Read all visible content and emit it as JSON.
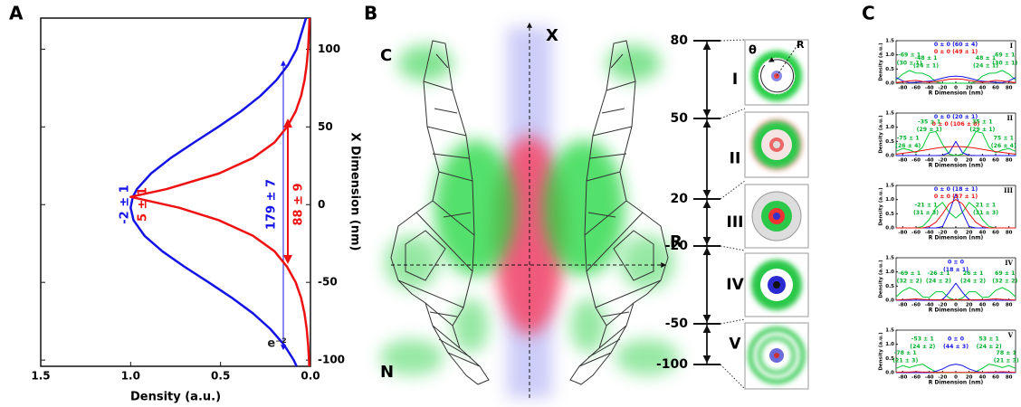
{
  "panel_labels": [
    "A",
    "B",
    "C"
  ],
  "panel_b": {
    "labels": {
      "top": "C",
      "bottom": "N",
      "x_axis": "X",
      "r_axis": "R",
      "theta": "θ",
      "radius": "R"
    },
    "scale_ticks": [
      80,
      50,
      20,
      -20,
      -50,
      -100
    ],
    "sections": [
      "I",
      "II",
      "III",
      "IV",
      "V"
    ]
  },
  "chart_data": [
    {
      "type": "line",
      "orientation": "vertical",
      "x_label": "Density (a.u.)",
      "y_label": "X Dimension (nm)",
      "x": [
        -104,
        -100,
        -90,
        -80,
        -70,
        -60,
        -50,
        -40,
        -30,
        -20,
        -10,
        -2,
        5,
        10,
        20,
        30,
        40,
        50,
        60,
        70,
        80,
        90,
        100,
        120
      ],
      "series": [
        {
          "color": "#1414e6",
          "values": [
            0.077,
            0.093,
            0.148,
            0.223,
            0.319,
            0.436,
            0.566,
            0.7,
            0.824,
            0.923,
            0.984,
            1.0,
            0.988,
            0.965,
            0.887,
            0.777,
            0.647,
            0.513,
            0.387,
            0.278,
            0.19,
            0.124,
            0.077,
            0.025
          ]
        },
        {
          "color": "#ee1111",
          "values": [
            0.007,
            0.008,
            0.013,
            0.021,
            0.033,
            0.052,
            0.082,
            0.13,
            0.2,
            0.32,
            0.51,
            0.73,
            1.0,
            0.8,
            0.51,
            0.32,
            0.2,
            0.13,
            0.082,
            0.052,
            0.033,
            0.021,
            0.013,
            0.005
          ]
        }
      ],
      "xlim": [
        1.5,
        0
      ],
      "ylim": [
        -104,
        120
      ],
      "xticks": [
        1.5,
        {
          "value": 1,
          "label": "1.0"
        },
        0.5,
        {
          "value": 0,
          "label": "0.0"
        }
      ],
      "yticks": [
        -100,
        -50,
        0,
        50,
        100
      ],
      "annotations": [
        {
          "text": "-2 ± 1",
          "color": "#1414e6"
        },
        {
          "text": "5 ± 1",
          "color": "#ee1111"
        },
        {
          "text": "179 ± 7",
          "color": "#1414e6"
        },
        {
          "text": "88 ± 9",
          "color": "#ee1111"
        },
        {
          "text": "e⁻²",
          "color": "#222222"
        }
      ]
    },
    {
      "type": "line",
      "orientation": "horizontal",
      "label": "I",
      "x_label": "R Dimension (nm)",
      "y_label": "Density (a.u.)",
      "x": [
        -90,
        -80,
        -70,
        -60,
        -50,
        -40,
        -30,
        -20,
        -10,
        0,
        10,
        20,
        30,
        40,
        50,
        60,
        70,
        80,
        90
      ],
      "series": [
        {
          "color": "#00c832",
          "values": [
            0.12,
            0.32,
            0.45,
            0.36,
            0.35,
            0.25,
            0.05,
            0,
            0,
            0,
            0,
            0,
            0.05,
            0.25,
            0.35,
            0.36,
            0.45,
            0.32,
            0.12
          ]
        },
        {
          "color": "#1414e6",
          "values": [
            0.2,
            0.08,
            0.02,
            0.03,
            0.05,
            0.07,
            0.12,
            0.18,
            0.23,
            0.25,
            0.23,
            0.18,
            0.12,
            0.07,
            0.05,
            0.03,
            0.02,
            0.08,
            0.2
          ]
        },
        {
          "color": "#ee1111",
          "values": [
            0.02,
            0.05,
            0.08,
            0.1,
            0.06,
            0.04,
            0.06,
            0.1,
            0.14,
            0.15,
            0.14,
            0.1,
            0.06,
            0.04,
            0.06,
            0.1,
            0.08,
            0.05,
            0.02
          ]
        }
      ],
      "xlim": [
        -90,
        90
      ],
      "ylim": [
        0,
        1.5
      ],
      "xticks": [
        -80,
        -60,
        -40,
        -20,
        0,
        20,
        40,
        60,
        80
      ],
      "yticks": [
        {
          "value": 0,
          "label": "0.0"
        },
        0.5,
        {
          "value": 1,
          "label": "1.0"
        },
        1.5
      ],
      "annotations": [
        {
          "text": "0 ± 0 (60 ± 4)",
          "color": "#1414e6"
        },
        {
          "text": "0 ± 0 (49 ± 1)",
          "color": "#ee1111"
        },
        {
          "text": "-69 ± 1",
          "color": "#00b02c"
        },
        {
          "text": "(30 ± 1)",
          "color": "#00b02c"
        },
        {
          "text": "-48 ± 1",
          "color": "#00b02c"
        },
        {
          "text": "(24 ± 1)",
          "color": "#00b02c"
        },
        {
          "text": "48 ± 1",
          "color": "#00b02c"
        },
        {
          "text": "(24 ± 1)",
          "color": "#00b02c"
        },
        {
          "text": "69 ± 1",
          "color": "#00b02c"
        },
        {
          "text": "(30 ± 1)",
          "color": "#00b02c"
        }
      ]
    },
    {
      "type": "line",
      "orientation": "horizontal",
      "label": "II",
      "x_label": "R Dimension (nm)",
      "y_label": "Density (a.u.)",
      "x": [
        -90,
        -80,
        -70,
        -60,
        -50,
        -40,
        -30,
        -20,
        -10,
        0,
        10,
        20,
        30,
        40,
        50,
        60,
        70,
        80,
        90
      ],
      "series": [
        {
          "color": "#00c832",
          "values": [
            0.15,
            0.25,
            0.2,
            0.1,
            0.3,
            0.8,
            0.85,
            0.4,
            0.05,
            0,
            0.05,
            0.4,
            0.85,
            0.8,
            0.3,
            0.1,
            0.2,
            0.25,
            0.15
          ]
        },
        {
          "color": "#1414e6",
          "values": [
            0,
            0,
            0,
            0,
            0,
            0,
            0,
            0.01,
            0.1,
            0.5,
            0.1,
            0.01,
            0,
            0,
            0,
            0,
            0,
            0,
            0
          ]
        },
        {
          "color": "#ee1111",
          "values": [
            0.05,
            0.08,
            0.11,
            0.14,
            0.18,
            0.22,
            0.26,
            0.29,
            0.31,
            0.32,
            0.31,
            0.29,
            0.26,
            0.22,
            0.18,
            0.14,
            0.11,
            0.08,
            0.05
          ]
        }
      ],
      "xlim": [
        -90,
        90
      ],
      "ylim": [
        0,
        1.5
      ],
      "xticks": [
        -80,
        -60,
        -40,
        -20,
        0,
        20,
        40,
        60,
        80
      ],
      "yticks": [
        {
          "value": 0,
          "label": "0.0"
        },
        0.5,
        {
          "value": 1,
          "label": "1.0"
        },
        1.5
      ],
      "annotations": [
        {
          "text": "0 ± 0 (20 ± 1)",
          "color": "#1414e6"
        },
        {
          "text": "0 ± 0 (106 ± 8)",
          "color": "#ee1111"
        },
        {
          "text": "-35 ± 1",
          "color": "#00b02c"
        },
        {
          "text": "(29 ± 1)",
          "color": "#00b02c"
        },
        {
          "text": "-75 ± 1",
          "color": "#00b02c"
        },
        {
          "text": "(26 ± 4)",
          "color": "#00b02c"
        },
        {
          "text": "35 ± 1",
          "color": "#00b02c"
        },
        {
          "text": "(29 ± 1)",
          "color": "#00b02c"
        },
        {
          "text": "75 ± 1",
          "color": "#00b02c"
        },
        {
          "text": "(26 ± 4)",
          "color": "#00b02c"
        }
      ]
    },
    {
      "type": "line",
      "orientation": "horizontal",
      "label": "III",
      "x_label": "R Dimension (nm)",
      "y_label": "Density (a.u.)",
      "x": [
        -90,
        -80,
        -70,
        -60,
        -50,
        -40,
        -30,
        -20,
        -10,
        0,
        10,
        20,
        30,
        40,
        50,
        60,
        70,
        80,
        90
      ],
      "series": [
        {
          "color": "#00c832",
          "values": [
            0,
            0,
            0,
            0,
            0.05,
            0.3,
            0.7,
            0.9,
            0.55,
            0.35,
            0.55,
            0.9,
            0.7,
            0.3,
            0.05,
            0,
            0,
            0,
            0
          ]
        },
        {
          "color": "#1414e6",
          "values": [
            0,
            0,
            0,
            0,
            0,
            0,
            0,
            0.05,
            0.55,
            1.2,
            0.55,
            0.05,
            0,
            0,
            0,
            0,
            0,
            0,
            0
          ]
        },
        {
          "color": "#ee1111",
          "values": [
            0,
            0,
            0,
            0,
            0,
            0.05,
            0.2,
            0.5,
            0.85,
            1.0,
            0.85,
            0.5,
            0.2,
            0.05,
            0,
            0,
            0,
            0,
            0
          ]
        }
      ],
      "xlim": [
        -90,
        90
      ],
      "ylim": [
        0,
        1.5
      ],
      "xticks": [
        -80,
        -60,
        -40,
        -20,
        0,
        20,
        40,
        60,
        80
      ],
      "yticks": [
        {
          "value": 0,
          "label": "0.0"
        },
        0.5,
        {
          "value": 1,
          "label": "1.0"
        },
        1.5
      ],
      "annotations": [
        {
          "text": "0 ± 0 (18 ± 1)",
          "color": "#1414e6"
        },
        {
          "text": "0 ± 0 (37 ± 1)",
          "color": "#ee1111"
        },
        {
          "text": "-21 ± 1",
          "color": "#00b02c"
        },
        {
          "text": "(31 ± 3)",
          "color": "#00b02c"
        },
        {
          "text": "21 ± 1",
          "color": "#00b02c"
        },
        {
          "text": "(31 ± 3)",
          "color": "#00b02c"
        }
      ]
    },
    {
      "type": "line",
      "orientation": "horizontal",
      "label": "IV",
      "x_label": "R Dimension (nm)",
      "y_label": "Density (a.u.)",
      "x": [
        -90,
        -80,
        -70,
        -60,
        -50,
        -40,
        -30,
        -20,
        -10,
        0,
        10,
        20,
        30,
        40,
        50,
        60,
        70,
        80,
        90
      ],
      "series": [
        {
          "color": "#00c832",
          "values": [
            0.12,
            0.33,
            0.45,
            0.35,
            0.12,
            0.1,
            0.3,
            0.3,
            0.08,
            0,
            0.08,
            0.3,
            0.3,
            0.1,
            0.12,
            0.35,
            0.45,
            0.33,
            0.12
          ]
        },
        {
          "color": "#1414e6",
          "values": [
            0,
            0,
            0,
            0,
            0,
            0,
            0,
            0.02,
            0.28,
            0.6,
            0.28,
            0.02,
            0,
            0,
            0,
            0,
            0,
            0,
            0
          ]
        },
        {
          "color": "#ee1111",
          "values": [
            0.01,
            0.02,
            0.03,
            0.05,
            0.03,
            0.02,
            0.02,
            0.02,
            0.02,
            0.02,
            0.02,
            0.02,
            0.02,
            0.02,
            0.03,
            0.05,
            0.03,
            0.02,
            0.01
          ]
        }
      ],
      "xlim": [
        -90,
        90
      ],
      "ylim": [
        0,
        1.5
      ],
      "xticks": [
        -80,
        -60,
        -40,
        -20,
        0,
        20,
        40,
        60,
        80
      ],
      "yticks": [
        {
          "value": 0,
          "label": "0.0"
        },
        0.5,
        {
          "value": 1,
          "label": "1.0"
        },
        1.5
      ],
      "annotations": [
        {
          "text": "0 ± 0",
          "color": "#1414e6"
        },
        {
          "text": "(18 ± 1)",
          "color": "#1414e6"
        },
        {
          "text": "-69 ± 1",
          "color": "#00b02c"
        },
        {
          "text": "(32 ± 2)",
          "color": "#00b02c"
        },
        {
          "text": "-26 ± 1",
          "color": "#00b02c"
        },
        {
          "text": "(24 ± 2)",
          "color": "#00b02c"
        },
        {
          "text": "26 ± 1",
          "color": "#00b02c"
        },
        {
          "text": "(24 ± 2)",
          "color": "#00b02c"
        },
        {
          "text": "69 ± 1",
          "color": "#00b02c"
        },
        {
          "text": "(32 ± 2)",
          "color": "#00b02c"
        }
      ]
    },
    {
      "type": "line",
      "orientation": "horizontal",
      "label": "V",
      "x_label": "R Dimension (nm)",
      "y_label": "Density (a.u.)",
      "x": [
        -90,
        -80,
        -70,
        -60,
        -50,
        -40,
        -30,
        -20,
        -10,
        0,
        10,
        20,
        30,
        40,
        50,
        60,
        70,
        80,
        90
      ],
      "series": [
        {
          "color": "#00c832",
          "values": [
            0.15,
            0.25,
            0.18,
            0.25,
            0.3,
            0.15,
            0.03,
            0,
            0,
            0,
            0,
            0,
            0.03,
            0.15,
            0.3,
            0.25,
            0.18,
            0.25,
            0.15
          ]
        },
        {
          "color": "#1414e6",
          "values": [
            0,
            0,
            0,
            0,
            0,
            0,
            0.05,
            0.13,
            0.25,
            0.3,
            0.25,
            0.13,
            0.05,
            0,
            0,
            0,
            0,
            0,
            0
          ]
        },
        {
          "color": "#ee1111",
          "values": [
            0.01,
            0.02,
            0.02,
            0.03,
            0.02,
            0.02,
            0.01,
            0.01,
            0.01,
            0.01,
            0.01,
            0.01,
            0.01,
            0.01,
            0.02,
            0.02,
            0.03,
            0.02,
            0.01
          ]
        }
      ],
      "xlim": [
        -90,
        90
      ],
      "ylim": [
        0,
        1.5
      ],
      "xticks": [
        -80,
        -60,
        -40,
        -20,
        0,
        20,
        40,
        60,
        80
      ],
      "yticks": [
        {
          "value": 0,
          "label": "0.0"
        },
        0.5,
        {
          "value": 1,
          "label": "1.0"
        },
        1.5
      ],
      "annotations": [
        {
          "text": "-53 ± 1",
          "color": "#00b02c"
        },
        {
          "text": "(24 ± 2)",
          "color": "#00b02c"
        },
        {
          "text": "0 ± 0",
          "color": "#1414e6"
        },
        {
          "text": "(44 ± 3)",
          "color": "#1414e6"
        },
        {
          "text": "53 ± 1",
          "color": "#00b02c"
        },
        {
          "text": "(24 ± 2)",
          "color": "#00b02c"
        },
        {
          "text": "-78 ± 1",
          "color": "#00b02c"
        },
        {
          "text": "(21 ± 3)",
          "color": "#00b02c"
        },
        {
          "text": "78 ± 1",
          "color": "#00b02c"
        },
        {
          "text": "(21 ± 3)",
          "color": "#00b02c"
        }
      ]
    }
  ]
}
